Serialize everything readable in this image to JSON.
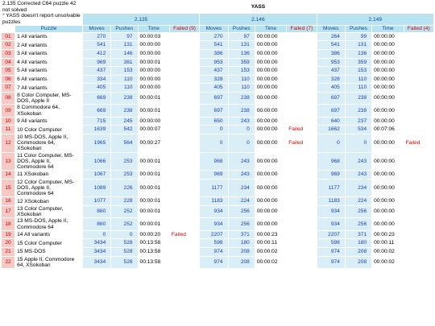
{
  "notes": {
    "line1": "2.135 Corrected C64 puzzle 42 not solved",
    "marker": "*",
    "line2": "YASS doesn't report unsolvable puzzles"
  },
  "title": "YASS",
  "versions": [
    "2.135",
    "2.146",
    "2.149"
  ],
  "puzzle_header": "Puzzle",
  "group_headers": [
    [
      "Moves",
      "Pushes",
      "Time",
      "Failed (9)"
    ],
    [
      "Moves",
      "Pushes",
      "Time",
      "Failed (7)"
    ],
    [
      "Moves",
      "Pushes",
      "Time",
      "Failed (4)"
    ]
  ],
  "failed_label": "Failed",
  "rows": [
    [
      "01",
      "1 All variants",
      [
        [
          270,
          97,
          "00:00:03",
          false
        ],
        [
          270,
          97,
          "00:00:00",
          false
        ],
        [
          264,
          99,
          "00:00:00",
          false
        ]
      ]
    ],
    [
      "02",
      "2 All variants",
      [
        [
          541,
          131,
          "00:00:00",
          false
        ],
        [
          541,
          131,
          "00:00:00",
          false
        ],
        [
          541,
          131,
          "00:00:00",
          false
        ]
      ]
    ],
    [
      "03",
      "3 All variants",
      [
        [
          412,
          146,
          "00:00:00",
          false
        ],
        [
          386,
          136,
          "00:00:00",
          false
        ],
        [
          386,
          136,
          "00:00:00",
          false
        ]
      ]
    ],
    [
      "04",
      "4 All variants",
      [
        [
          969,
          361,
          "00:00:01",
          false
        ],
        [
          953,
          359,
          "00:00:00",
          false
        ],
        [
          953,
          359,
          "00:00:00",
          false
        ]
      ]
    ],
    [
      "05",
      "5 All variants",
      [
        [
          437,
          153,
          "00:00:00",
          false
        ],
        [
          437,
          153,
          "00:00:00",
          false
        ],
        [
          437,
          153,
          "00:00:00",
          false
        ]
      ]
    ],
    [
      "06",
      "6 All variants",
      [
        [
          334,
          110,
          "00:00:00",
          false
        ],
        [
          328,
          110,
          "00:00:00",
          false
        ],
        [
          328,
          110,
          "00:00:00",
          false
        ]
      ]
    ],
    [
      "07",
      "7 All variants",
      [
        [
          405,
          110,
          "00:00:00",
          false
        ],
        [
          405,
          110,
          "00:00:00",
          false
        ],
        [
          405,
          110,
          "00:00:00",
          false
        ]
      ]
    ],
    [
      "08",
      "8 Color Computer, MS-DOS, Apple II",
      [
        [
          669,
          238,
          "00:00:01",
          false
        ],
        [
          697,
          238,
          "00:00:00",
          false
        ],
        [
          697,
          238,
          "00:00:00",
          false
        ]
      ]
    ],
    [
      "09",
      "8 Commodore 64, XSokoban",
      [
        [
          669,
          238,
          "00:00:01",
          false
        ],
        [
          697,
          238,
          "00:00:00",
          false
        ],
        [
          697,
          238,
          "00:00:00",
          false
        ]
      ]
    ],
    [
      "10",
      "9 All variants",
      [
        [
          715,
          245,
          "00:00:00",
          false
        ],
        [
          650,
          243,
          "00:00:00",
          false
        ],
        [
          640,
          237,
          "00:00:00",
          false
        ]
      ]
    ],
    [
      "11",
      "10 Color Computer",
      [
        [
          1639,
          542,
          "00:00:07",
          false
        ],
        [
          0,
          0,
          "00:00:00",
          true
        ],
        [
          1662,
          534,
          "00:07:06",
          false
        ]
      ]
    ],
    [
      "12",
      "10 MS-DOS, Apple II, Commodore 64, XSokoban",
      [
        [
          1965,
          564,
          "00:00:27",
          false
        ],
        [
          0,
          0,
          "00:00:00",
          true
        ],
        [
          0,
          0,
          "00:00:00",
          true
        ]
      ]
    ],
    [
      "13",
      "11 Color Computer, MS-DOS, Apple II, Commodore 64",
      [
        [
          1066,
          253,
          "00:00:01",
          false
        ],
        [
          968,
          243,
          "00:00:00",
          false
        ],
        [
          968,
          243,
          "00:00:00",
          false
        ]
      ]
    ],
    [
      "14",
      "11 XSokoban",
      [
        [
          1067,
          253,
          "00:00:01",
          false
        ],
        [
          969,
          243,
          "00:00:00",
          false
        ],
        [
          969,
          243,
          "00:00:00",
          false
        ]
      ]
    ],
    [
      "15",
      "12 Color Computer, MS-DOS, Apple II, Commodore 64",
      [
        [
          1089,
          226,
          "00:00:01",
          false
        ],
        [
          1177,
          234,
          "00:00:00",
          false
        ],
        [
          1177,
          234,
          "00:00:00",
          false
        ]
      ]
    ],
    [
      "16",
      "12 XSokoban",
      [
        [
          1077,
          228,
          "00:00:01",
          false
        ],
        [
          1183,
          224,
          "00:00:00",
          false
        ],
        [
          1183,
          224,
          "00:00:00",
          false
        ]
      ]
    ],
    [
      "17",
      "13 Color Computer, XSokoban",
      [
        [
          860,
          252,
          "00:00:01",
          false
        ],
        [
          934,
          256,
          "00:00:00",
          false
        ],
        [
          934,
          256,
          "00:00:00",
          false
        ]
      ]
    ],
    [
      "18",
      "13 MS-DOS, Apple II, Commodore 64",
      [
        [
          860,
          252,
          "00:00:01",
          false
        ],
        [
          934,
          256,
          "00:00:00",
          false
        ],
        [
          934,
          256,
          "00:00:00",
          false
        ]
      ]
    ],
    [
      "19",
      "14 All variants",
      [
        [
          0,
          0,
          "00:00:20",
          true
        ],
        [
          2207,
          371,
          "00:00:23",
          false
        ],
        [
          2207,
          371,
          "00:00:23",
          false
        ]
      ]
    ],
    [
      "20",
      "15 Color Computer",
      [
        [
          3434,
          528,
          "00:13:58",
          false
        ],
        [
          598,
          180,
          "00:00:11",
          false
        ],
        [
          598,
          180,
          "00:00:11",
          false
        ]
      ]
    ],
    [
      "21",
      "15 MS-DOS",
      [
        [
          3434,
          528,
          "00:13:58",
          false
        ],
        [
          974,
          208,
          "00:00:02",
          false
        ],
        [
          974,
          208,
          "00:00:02",
          false
        ]
      ]
    ],
    [
      "22",
      "15 Apple II, Commodore 64, XSokoban",
      [
        [
          3434,
          528,
          "00:13:58",
          false
        ],
        [
          974,
          208,
          "00:00:02",
          false
        ],
        [
          974,
          208,
          "00:00:02",
          false
        ]
      ]
    ]
  ]
}
